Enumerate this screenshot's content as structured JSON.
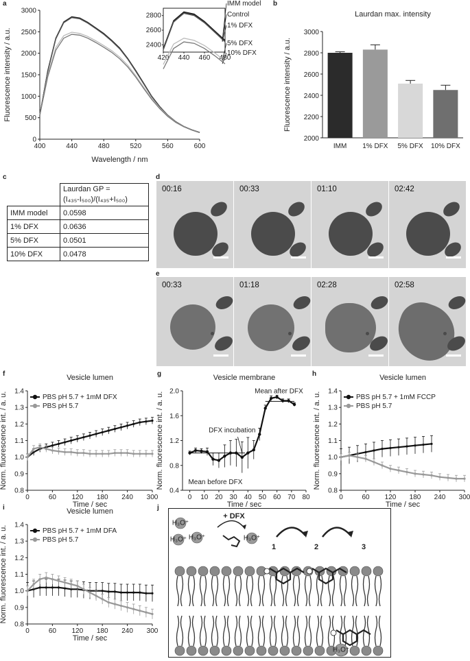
{
  "panel_labels": {
    "a": "a",
    "b": "b",
    "c": "c",
    "d": "d",
    "e": "e",
    "f": "f",
    "g": "g",
    "h": "h",
    "i": "i",
    "j": "j"
  },
  "chart_data": [
    {
      "id": "a",
      "type": "line",
      "xlabel": "Wavelength / nm",
      "ylabel": "Fluorescence intensity / a.u.",
      "xlim": [
        400,
        600
      ],
      "ylim": [
        0,
        3000
      ],
      "xticks": [
        "400",
        "440",
        "480",
        "520",
        "560",
        "600"
      ],
      "yticks": [
        "0",
        "500",
        "1000",
        "1500",
        "2000",
        "2500",
        "3000"
      ],
      "x": [
        400,
        410,
        420,
        430,
        440,
        450,
        460,
        470,
        480,
        490,
        500,
        510,
        520,
        530,
        540,
        550,
        560,
        570,
        580,
        590,
        600
      ],
      "series": [
        {
          "name": "IMM model",
          "color": "#111111",
          "values": [
            560,
            1600,
            2350,
            2730,
            2850,
            2820,
            2720,
            2590,
            2460,
            2300,
            2120,
            1880,
            1600,
            1300,
            1000,
            760,
            560,
            410,
            300,
            220,
            160
          ]
        },
        {
          "name": "Control",
          "color": "#333333",
          "values": [
            560,
            1590,
            2340,
            2720,
            2840,
            2810,
            2710,
            2580,
            2450,
            2290,
            2110,
            1870,
            1590,
            1290,
            995,
            755,
            555,
            405,
            298,
            218,
            158
          ]
        },
        {
          "name": "1% DFX",
          "color": "#555555",
          "values": [
            560,
            1580,
            2330,
            2710,
            2830,
            2800,
            2700,
            2570,
            2440,
            2280,
            2100,
            1860,
            1580,
            1285,
            990,
            750,
            552,
            402,
            296,
            216,
            157
          ]
        },
        {
          "name": "5% DFX",
          "color": "#bbbbbb",
          "values": [
            560,
            1500,
            2130,
            2410,
            2490,
            2460,
            2390,
            2290,
            2180,
            2060,
            1910,
            1720,
            1480,
            1210,
            950,
            730,
            545,
            400,
            295,
            215,
            155
          ]
        },
        {
          "name": "10% DFX",
          "color": "#777777",
          "values": [
            560,
            1460,
            2070,
            2350,
            2440,
            2420,
            2350,
            2250,
            2140,
            2020,
            1870,
            1680,
            1445,
            1180,
            925,
            712,
            532,
            392,
            290,
            212,
            152
          ]
        }
      ],
      "inset": {
        "xlim": [
          420,
          480
        ],
        "ylim": [
          2300,
          2900
        ],
        "xticks": [
          "420",
          "440",
          "460",
          "480"
        ],
        "yticks": [
          "2400",
          "2600",
          "2800"
        ]
      }
    },
    {
      "id": "b",
      "type": "bar",
      "title": "Laurdan max. intensity",
      "ylabel": "Fluorescence intensity / a.u.",
      "categories": [
        "IMM",
        "1% DFX",
        "5% DFX",
        "10% DFX"
      ],
      "values": [
        2800,
        2830,
        2510,
        2450
      ],
      "errors": [
        10,
        45,
        30,
        45
      ],
      "colors": [
        "#2b2b2b",
        "#9a9a9a",
        "#d8d8d8",
        "#6f6f6f"
      ],
      "ylim": [
        2000,
        3000
      ],
      "yticks": [
        "2000",
        "2200",
        "2400",
        "2600",
        "2800",
        "3000"
      ]
    },
    {
      "id": "c",
      "type": "table",
      "header_line1": "Laurdan GP =",
      "header_line2": "(I₄₃₅-I₅₀₀)/(I₄₃₅+I₅₀₀)",
      "rows": [
        [
          "IMM model",
          "0.0598"
        ],
        [
          "1% DFX",
          "0.0636"
        ],
        [
          "5% DFX",
          "0.0501"
        ],
        [
          "10% DFX",
          "0.0478"
        ]
      ]
    },
    {
      "id": "f",
      "type": "line",
      "title": "Vesicle lumen",
      "xlabel": "Time / sec",
      "ylabel": "Norm. fluorescence int. / a. u.",
      "xlim": [
        0,
        300
      ],
      "ylim": [
        0.8,
        1.4
      ],
      "xticks": [
        "0",
        "60",
        "120",
        "180",
        "240",
        "300"
      ],
      "yticks": [
        "0.8",
        "0.9",
        "1.0",
        "1.1",
        "1.2",
        "1.3",
        "1.4"
      ],
      "x": [
        0,
        15,
        30,
        45,
        60,
        75,
        90,
        105,
        120,
        135,
        150,
        165,
        180,
        195,
        210,
        225,
        240,
        255,
        270,
        285,
        300
      ],
      "series": [
        {
          "name": "PBS pH 5.7 + 1mM DFX",
          "color": "#111111",
          "values": [
            1.0,
            1.03,
            1.05,
            1.06,
            1.07,
            1.08,
            1.09,
            1.1,
            1.11,
            1.12,
            1.13,
            1.14,
            1.15,
            1.16,
            1.17,
            1.18,
            1.19,
            1.2,
            1.21,
            1.215,
            1.22
          ],
          "err": 0.02
        },
        {
          "name": "PBS pH 5.7",
          "color": "#999999",
          "values": [
            1.0,
            1.05,
            1.06,
            1.05,
            1.04,
            1.035,
            1.03,
            1.03,
            1.025,
            1.025,
            1.02,
            1.02,
            1.02,
            1.02,
            1.025,
            1.025,
            1.025,
            1.02,
            1.02,
            1.02,
            1.02
          ],
          "err": 0.02
        }
      ]
    },
    {
      "id": "g",
      "type": "line",
      "title": "Vesicle membrane",
      "xlabel": "Time / sec",
      "ylabel": "Norm. fluorescence int. / a. u.",
      "xlim": [
        -5,
        80
      ],
      "ylim": [
        0.4,
        2.0
      ],
      "xticks": [
        "0",
        "10",
        "20",
        "30",
        "40",
        "50",
        "60",
        "70",
        "80"
      ],
      "yticks": [
        "0.4",
        "0.8",
        "1.2",
        "1.6",
        "2.0"
      ],
      "x": [
        0,
        4,
        8,
        12,
        16,
        20,
        24,
        28,
        32,
        36,
        40,
        44,
        48,
        52,
        56,
        60,
        64,
        68,
        72
      ],
      "series": [
        {
          "name": "",
          "color": "#111111",
          "values": [
            1.0,
            1.04,
            1.03,
            1.02,
            0.9,
            0.88,
            0.95,
            1.0,
            1.0,
            0.93,
            1.0,
            1.05,
            1.3,
            1.72,
            1.88,
            1.9,
            1.84,
            1.84,
            1.78
          ],
          "err": [
            0.03,
            0.04,
            0.04,
            0.06,
            0.1,
            0.12,
            0.18,
            0.2,
            0.22,
            0.25,
            0.25,
            0.15,
            0.1,
            0.05,
            0.04,
            0.03,
            0.03,
            0.03,
            0.03
          ]
        }
      ],
      "annotations": {
        "before": "Mean before DFX",
        "after": "Mean after DFX",
        "incubation": "DFX incubation"
      },
      "mean_before": 1.0,
      "mean_after": 1.83
    },
    {
      "id": "h",
      "type": "line",
      "title": "Vesicle lumen",
      "xlabel": "Time / sec",
      "ylabel": "Norm. fluorescence int. / a. u.",
      "xlim": [
        0,
        300
      ],
      "ylim": [
        0.8,
        1.4
      ],
      "xticks": [
        "0",
        "60",
        "120",
        "180",
        "240",
        "300"
      ],
      "yticks": [
        "0.8",
        "0.9",
        "1.0",
        "1.1",
        "1.2",
        "1.3",
        "1.4"
      ],
      "series": [
        {
          "name": "PBS pH 5.7 + 1mM FCCP",
          "color": "#111111",
          "x": [
            0,
            20,
            40,
            60,
            80,
            100,
            120,
            140,
            160,
            180,
            200,
            220
          ],
          "values": [
            1.0,
            1.01,
            1.02,
            1.03,
            1.04,
            1.05,
            1.055,
            1.06,
            1.065,
            1.07,
            1.075,
            1.08
          ],
          "err": 0.05
        },
        {
          "name": "PBS pH 5.7",
          "color": "#999999",
          "x": [
            0,
            20,
            40,
            60,
            80,
            100,
            120,
            140,
            160,
            180,
            200,
            220,
            240,
            260,
            280,
            300
          ],
          "values": [
            1.0,
            1.01,
            1.0,
            0.99,
            0.97,
            0.95,
            0.93,
            0.92,
            0.91,
            0.9,
            0.895,
            0.89,
            0.88,
            0.875,
            0.87,
            0.87
          ],
          "err": 0.02
        }
      ]
    },
    {
      "id": "i",
      "type": "line",
      "title": "Vesicle lumen",
      "xlabel": "Time / sec",
      "ylabel": "Norm. fluorescence int. / a. u.",
      "xlim": [
        0,
        300
      ],
      "ylim": [
        0.8,
        1.4
      ],
      "xticks": [
        "0",
        "60",
        "120",
        "180",
        "240",
        "300"
      ],
      "yticks": [
        "0.8",
        "0.9",
        "1.0",
        "1.1",
        "1.2",
        "1.3",
        "1.4"
      ],
      "x": [
        0,
        15,
        30,
        45,
        60,
        75,
        90,
        105,
        120,
        135,
        150,
        165,
        180,
        195,
        210,
        225,
        240,
        255,
        270,
        285,
        300
      ],
      "series": [
        {
          "name": "PBS pH 5.7 + 1mM DFA",
          "color": "#111111",
          "values": [
            1.0,
            1.01,
            1.02,
            1.02,
            1.02,
            1.02,
            1.015,
            1.01,
            1.01,
            1.005,
            1.0,
            1.0,
            1.0,
            0.995,
            0.995,
            0.99,
            0.99,
            0.99,
            0.99,
            0.985,
            0.985
          ],
          "err": 0.05
        },
        {
          "name": "PBS pH 5.7",
          "color": "#999999",
          "values": [
            1.0,
            1.04,
            1.07,
            1.08,
            1.07,
            1.06,
            1.05,
            1.04,
            1.03,
            1.01,
            0.99,
            0.97,
            0.95,
            0.93,
            0.92,
            0.91,
            0.9,
            0.89,
            0.88,
            0.87,
            0.86
          ],
          "err": 0.03
        }
      ]
    }
  ],
  "microscopy": {
    "d_times": [
      "00:16",
      "00:33",
      "01:10",
      "02:42"
    ],
    "e_times": [
      "00:33",
      "01:18",
      "02:28",
      "02:58"
    ]
  },
  "schematic": {
    "dfx_label": "+ DFX",
    "hydronium": "H₃O⁺",
    "steps": [
      "1",
      "2",
      "3"
    ]
  }
}
